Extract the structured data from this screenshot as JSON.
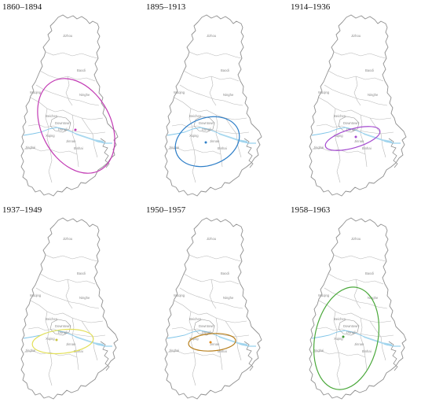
{
  "panels": [
    {
      "period": "1860–1894",
      "ellipse_color": "#c23ab4",
      "center_color": "#c23ab4"
    },
    {
      "period": "1895–1913",
      "ellipse_color": "#2f7fc8",
      "center_color": "#2f7fc8"
    },
    {
      "period": "1914–1936",
      "ellipse_color": "#a44ad0",
      "center_color": "#a44ad0"
    },
    {
      "period": "1937–1949",
      "ellipse_color": "#e3e05a",
      "center_color": "#c9c440"
    },
    {
      "period": "1950–1957",
      "ellipse_color": "#b8801e",
      "center_color": "#e08a1c"
    },
    {
      "period": "1958–1963",
      "ellipse_color": "#4aa83a",
      "center_color": "#3f9a33"
    }
  ],
  "districts": {
    "jizhou": "Jizhou",
    "baodi": "Baodi",
    "ninghe": "Ninghe",
    "wuqing": "Wuqing",
    "beichen": "Beichen",
    "downtown": "Downtown",
    "dongli": "Dongli",
    "xiqing": "Xiqing",
    "jinnan": "Jinnan",
    "binhai": "Binhai",
    "jinghai": "Jinghai"
  }
}
